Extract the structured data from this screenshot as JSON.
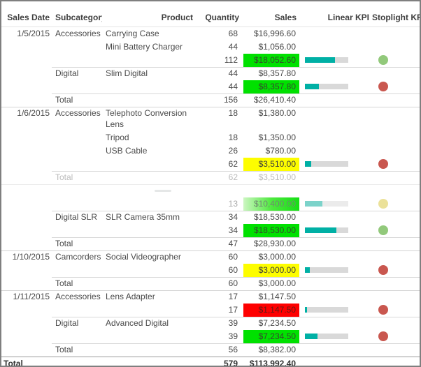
{
  "header": {
    "columns": [
      "Sales Date",
      "Subcategory",
      "Product",
      "Quantity",
      "Sales",
      "Linear KPI",
      "Stoplight KPI"
    ]
  },
  "colors": {
    "kpi_green": "#00e100",
    "kpi_yellow": "#fdfd00",
    "kpi_red": "#fe0000",
    "linear_kpi_fill": "#00b0a5",
    "linear_kpi_track": "#d9d9d9",
    "stoplight_green": "#92c97b",
    "stoplight_red": "#c9574f",
    "stoplight_yellow": "#ebe199",
    "outer_border": "#7f7f7f"
  },
  "rows": [
    {
      "type": "detail",
      "date": "1/5/2015",
      "subcategory": "Accessories",
      "product": "Carrying Case",
      "quantity": "68",
      "sales": "$16,996.60"
    },
    {
      "type": "detail",
      "product": "Mini Battery Charger",
      "quantity": "44",
      "sales": "$1,056.00"
    },
    {
      "type": "subtotal",
      "quantity": "112",
      "sales": "$18,052.60",
      "sales_bg": "green",
      "kpi_pct": 70,
      "stoplight": "green"
    },
    {
      "type": "detail",
      "subcategory": "Digital",
      "product": "Slim Digital",
      "quantity": "44",
      "sales": "$8,357.80",
      "sep": "sub"
    },
    {
      "type": "subtotal",
      "quantity": "44",
      "sales": "$8,357.80",
      "sales_bg": "green",
      "kpi_pct": 33,
      "stoplight": "red"
    },
    {
      "type": "total",
      "subcategory": "Total",
      "quantity": "156",
      "sales": "$26,410.40",
      "sep": "sub"
    },
    {
      "type": "detail",
      "date": "1/6/2015",
      "subcategory": "Accessories",
      "product": "Telephoto Conversion Lens",
      "quantity": "18",
      "sales": "$1,380.00",
      "sep": "full",
      "wrap": true
    },
    {
      "type": "detail",
      "product": "Tripod",
      "quantity": "18",
      "sales": "$1,350.00"
    },
    {
      "type": "detail",
      "product": "USB Cable",
      "quantity": "26",
      "sales": "$780.00"
    },
    {
      "type": "subtotal",
      "quantity": "62",
      "sales": "$3,510.00",
      "sales_bg": "yellow",
      "kpi_pct": 14,
      "stoplight": "red"
    },
    {
      "type": "total",
      "subcategory": "Total",
      "quantity": "62",
      "sales": "$3,510.00",
      "sep": "sub",
      "faded": true
    },
    {
      "type": "phantom",
      "sep": "full-faded"
    },
    {
      "type": "subtotal",
      "quantity": "13",
      "sales": "$10,400.00",
      "sales_bg": "green-faded",
      "kpi_pct": 40,
      "stoplight": "yellow",
      "faded": true
    },
    {
      "type": "detail",
      "subcategory": "Digital SLR",
      "product": "SLR Camera 35mm",
      "quantity": "34",
      "sales": "$18,530.00",
      "sep": "sub"
    },
    {
      "type": "subtotal",
      "quantity": "34",
      "sales": "$18,530.00",
      "sales_bg": "green",
      "kpi_pct": 73,
      "stoplight": "green"
    },
    {
      "type": "total",
      "subcategory": "Total",
      "quantity": "47",
      "sales": "$28,930.00",
      "sep": "sub"
    },
    {
      "type": "detail",
      "date": "1/10/2015",
      "subcategory": "Camcorders",
      "product": "Social Videographer",
      "quantity": "60",
      "sales": "$3,000.00",
      "sep": "full"
    },
    {
      "type": "subtotal",
      "quantity": "60",
      "sales": "$3,000.00",
      "sales_bg": "yellow",
      "kpi_pct": 12,
      "stoplight": "red"
    },
    {
      "type": "total",
      "subcategory": "Total",
      "quantity": "60",
      "sales": "$3,000.00",
      "sep": "sub"
    },
    {
      "type": "detail",
      "date": "1/11/2015",
      "subcategory": "Accessories",
      "product": "Lens Adapter",
      "quantity": "17",
      "sales": "$1,147.50",
      "sep": "full"
    },
    {
      "type": "subtotal",
      "quantity": "17",
      "sales": "$1,147.50",
      "sales_bg": "red",
      "kpi_pct": 5,
      "stoplight": "red"
    },
    {
      "type": "detail",
      "subcategory": "Digital",
      "product": "Advanced Digital",
      "quantity": "39",
      "sales": "$7,234.50",
      "sep": "sub"
    },
    {
      "type": "subtotal",
      "quantity": "39",
      "sales": "$7,234.50",
      "sales_bg": "green",
      "kpi_pct": 29,
      "stoplight": "red"
    },
    {
      "type": "total",
      "subcategory": "Total",
      "quantity": "56",
      "sales": "$8,382.00",
      "sep": "sub"
    },
    {
      "type": "grand_total",
      "label": "Total",
      "quantity": "579",
      "sales": "$113,992.40",
      "sep": "grand"
    }
  ]
}
